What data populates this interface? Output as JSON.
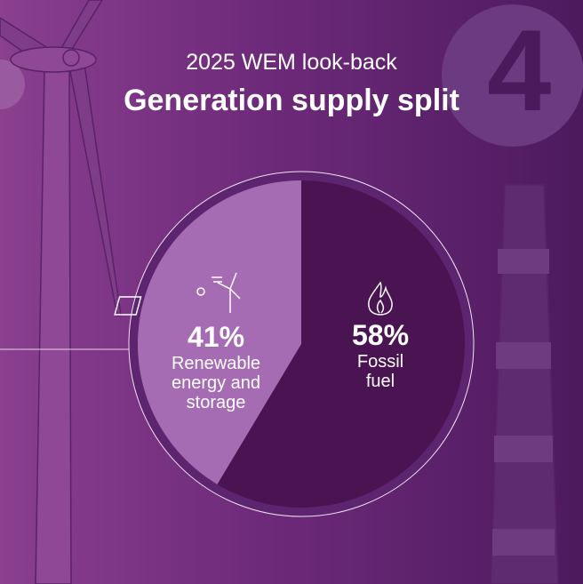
{
  "badge": "4",
  "chart_data": {
    "type": "pie",
    "title": "Generation supply split",
    "subtitle": "2025 WEM look-back",
    "categories": [
      "Renewable energy and storage",
      "Fossil fuel"
    ],
    "values": [
      41,
      58
    ],
    "value_labels": [
      "41%",
      "58%"
    ],
    "colors": [
      "#a66cb3",
      "#4a1352"
    ]
  }
}
